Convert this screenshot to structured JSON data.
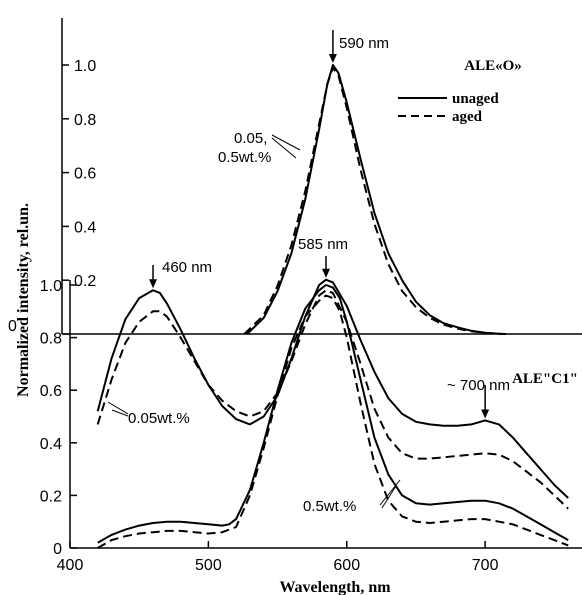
{
  "chart_data": {
    "type": "line",
    "xlabel": "Wavelength, nm",
    "ylabel": "Normalized intensity, rel.un.",
    "xlim": [
      400,
      770
    ],
    "x_ticks": [
      400,
      500,
      600,
      700
    ],
    "grid": false,
    "upper_panel": {
      "title": "ALE«O»",
      "ylim": [
        0,
        1.0
      ],
      "y_ticks": [
        "0",
        "0.2",
        "0.4",
        "0.6",
        "0.8",
        "1.0"
      ],
      "annotations": {
        "peak": "590 nm",
        "conc_line1": "0.05,",
        "conc_line2": "0.5wt.%"
      },
      "legend": {
        "position": "top-right",
        "solid_label": "unaged",
        "dashed_label": "aged"
      },
      "series": [
        {
          "name": "unaged",
          "style": "solid",
          "x": [
            528,
            540,
            550,
            560,
            570,
            580,
            586,
            590,
            594,
            600,
            610,
            620,
            630,
            640,
            650,
            660,
            670,
            680,
            690,
            700,
            710,
            715
          ],
          "y": [
            0.0,
            0.06,
            0.16,
            0.3,
            0.5,
            0.76,
            0.93,
            1.0,
            0.97,
            0.86,
            0.65,
            0.45,
            0.3,
            0.2,
            0.12,
            0.07,
            0.04,
            0.025,
            0.012,
            0.005,
            0.001,
            0.0
          ]
        },
        {
          "name": "aged",
          "style": "dashed",
          "x": [
            526,
            540,
            550,
            560,
            570,
            580,
            586,
            590,
            594,
            600,
            610,
            620,
            630,
            640,
            650,
            660,
            670,
            680,
            690,
            700,
            712
          ],
          "y": [
            0.0,
            0.07,
            0.18,
            0.33,
            0.53,
            0.78,
            0.93,
            0.99,
            0.96,
            0.84,
            0.61,
            0.41,
            0.26,
            0.16,
            0.1,
            0.06,
            0.035,
            0.02,
            0.01,
            0.004,
            0.0
          ]
        }
      ]
    },
    "lower_panel": {
      "title": "ALE\"C1\"",
      "ylim": [
        0,
        1.0
      ],
      "y_ticks": [
        "0",
        "0.2",
        "0.4",
        "0.6",
        "0.8",
        "1.0"
      ],
      "annotations": {
        "peak_blue": "460 nm",
        "peak_orange": "585 nm",
        "peak_red": "~ 700 nm",
        "conc_high": "0.05wt.%",
        "conc_low": "0.5wt.%"
      },
      "series": [
        {
          "name": "0.05wt.% unaged",
          "style": "solid",
          "x": [
            420,
            430,
            440,
            450,
            460,
            465,
            470,
            480,
            490,
            500,
            510,
            520,
            530,
            540,
            550,
            560,
            570,
            580,
            585,
            590,
            600,
            610,
            620,
            630,
            640,
            650,
            660,
            670,
            680,
            690,
            700,
            710,
            720,
            730,
            740,
            750,
            760
          ],
          "y": [
            0.52,
            0.72,
            0.87,
            0.95,
            0.98,
            0.97,
            0.93,
            0.83,
            0.72,
            0.62,
            0.54,
            0.49,
            0.47,
            0.5,
            0.58,
            0.72,
            0.88,
            1.0,
            1.02,
            1.01,
            0.92,
            0.79,
            0.67,
            0.57,
            0.51,
            0.48,
            0.47,
            0.465,
            0.465,
            0.47,
            0.485,
            0.47,
            0.42,
            0.36,
            0.3,
            0.24,
            0.19
          ]
        },
        {
          "name": "0.05wt.% aged",
          "style": "dashed",
          "x": [
            420,
            430,
            440,
            450,
            460,
            465,
            470,
            480,
            490,
            500,
            510,
            520,
            530,
            540,
            550,
            560,
            570,
            580,
            585,
            590,
            600,
            610,
            620,
            630,
            640,
            650,
            660,
            670,
            680,
            690,
            700,
            710,
            720,
            730,
            740,
            750,
            760
          ],
          "y": [
            0.47,
            0.64,
            0.78,
            0.86,
            0.9,
            0.9,
            0.88,
            0.8,
            0.71,
            0.62,
            0.56,
            0.52,
            0.5,
            0.52,
            0.59,
            0.71,
            0.85,
            0.96,
            0.98,
            0.97,
            0.86,
            0.7,
            0.53,
            0.42,
            0.36,
            0.34,
            0.34,
            0.345,
            0.35,
            0.355,
            0.36,
            0.355,
            0.33,
            0.29,
            0.25,
            0.2,
            0.15
          ]
        },
        {
          "name": "0.5wt.% unaged",
          "style": "solid",
          "x": [
            420,
            430,
            440,
            450,
            460,
            470,
            480,
            490,
            500,
            510,
            515,
            520,
            530,
            540,
            550,
            560,
            570,
            580,
            585,
            590,
            595,
            600,
            610,
            620,
            630,
            640,
            650,
            660,
            670,
            680,
            690,
            700,
            710,
            720,
            730,
            740,
            750,
            760
          ],
          "y": [
            0.02,
            0.05,
            0.07,
            0.085,
            0.095,
            0.1,
            0.1,
            0.095,
            0.09,
            0.085,
            0.09,
            0.11,
            0.22,
            0.4,
            0.6,
            0.78,
            0.91,
            0.98,
            1.0,
            0.99,
            0.95,
            0.86,
            0.64,
            0.42,
            0.28,
            0.2,
            0.17,
            0.165,
            0.17,
            0.175,
            0.18,
            0.18,
            0.17,
            0.15,
            0.12,
            0.09,
            0.06,
            0.03
          ]
        },
        {
          "name": "0.5wt.% aged",
          "style": "dashed",
          "x": [
            420,
            430,
            440,
            450,
            460,
            470,
            480,
            490,
            500,
            510,
            520,
            530,
            540,
            550,
            560,
            570,
            580,
            585,
            590,
            595,
            600,
            610,
            620,
            630,
            640,
            650,
            660,
            670,
            680,
            690,
            700,
            710,
            720,
            730,
            740,
            750,
            760
          ],
          "y": [
            0.0,
            0.03,
            0.045,
            0.055,
            0.06,
            0.065,
            0.065,
            0.06,
            0.055,
            0.06,
            0.08,
            0.2,
            0.38,
            0.58,
            0.76,
            0.88,
            0.94,
            0.96,
            0.95,
            0.9,
            0.8,
            0.55,
            0.32,
            0.18,
            0.12,
            0.1,
            0.095,
            0.1,
            0.105,
            0.11,
            0.11,
            0.1,
            0.09,
            0.07,
            0.05,
            0.03,
            0.01
          ]
        }
      ]
    }
  }
}
